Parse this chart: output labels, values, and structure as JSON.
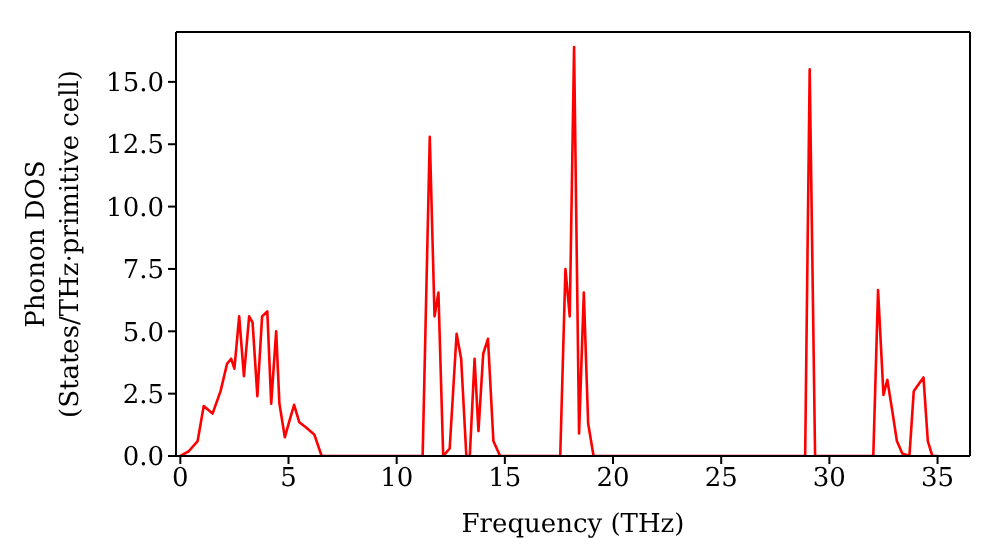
{
  "chart_data": {
    "type": "line",
    "xlabel": "Frequency (THz)",
    "ylabel": "Phonon DOS\n(States/THz·primitive cell)",
    "x": [
      0,
      0.4,
      0.8,
      1.08,
      1.49,
      1.86,
      2.16,
      2.35,
      2.5,
      2.72,
      2.94,
      3.18,
      3.34,
      3.56,
      3.78,
      4.02,
      4.2,
      4.43,
      4.58,
      4.83,
      5.04,
      5.26,
      5.5,
      5.8,
      6.2,
      6.5,
      6.55,
      11.2,
      11.53,
      11.75,
      11.93,
      12.15,
      12.45,
      12.77,
      12.98,
      13.22,
      13.38,
      13.6,
      13.78,
      14.0,
      14.22,
      14.47,
      14.78,
      17.56,
      17.8,
      18.0,
      18.2,
      18.43,
      18.65,
      18.85,
      19.1,
      28.88,
      29.09,
      29.34,
      32.03,
      32.25,
      32.5,
      32.68,
      32.9,
      33.12,
      33.37,
      33.7,
      33.9,
      34.14,
      34.35,
      34.55,
      34.76,
      35.0
    ],
    "series": [
      {
        "color": "#ff0000",
        "values": [
          0,
          0.2,
          0.6,
          2.0,
          1.7,
          2.6,
          3.7,
          3.9,
          3.5,
          5.6,
          3.2,
          5.6,
          5.35,
          2.4,
          5.6,
          5.8,
          2.1,
          5.0,
          2.1,
          0.75,
          1.4,
          2.05,
          1.35,
          1.15,
          0.85,
          0.08,
          0,
          0,
          12.8,
          5.6,
          6.55,
          0,
          0.3,
          4.9,
          3.9,
          0,
          0,
          3.9,
          1.0,
          4.1,
          4.7,
          0.6,
          0,
          0,
          7.5,
          5.6,
          16.4,
          0.9,
          6.55,
          1.3,
          0,
          0,
          15.5,
          0,
          0,
          6.65,
          2.45,
          3.05,
          1.85,
          0.6,
          0.1,
          0,
          2.6,
          2.9,
          3.15,
          0.6,
          0,
          0
        ]
      }
    ],
    "xlim": [
      -0.2,
      36.5
    ],
    "xticks": [
      0,
      5,
      10,
      15,
      20,
      25,
      30,
      35
    ],
    "ylim": [
      0,
      17
    ],
    "yticks": [
      {
        "value": 0,
        "label": "0.0"
      },
      {
        "value": 2.5,
        "label": "2.5"
      },
      {
        "value": 5,
        "label": "5.0"
      },
      {
        "value": 7.5,
        "label": "7.5"
      },
      {
        "value": 10,
        "label": "10.0"
      },
      {
        "value": 12.5,
        "label": "12.5"
      },
      {
        "value": 15,
        "label": "15.0"
      }
    ],
    "grid": false,
    "legend": false,
    "marker": "none",
    "line_style": "solid"
  }
}
